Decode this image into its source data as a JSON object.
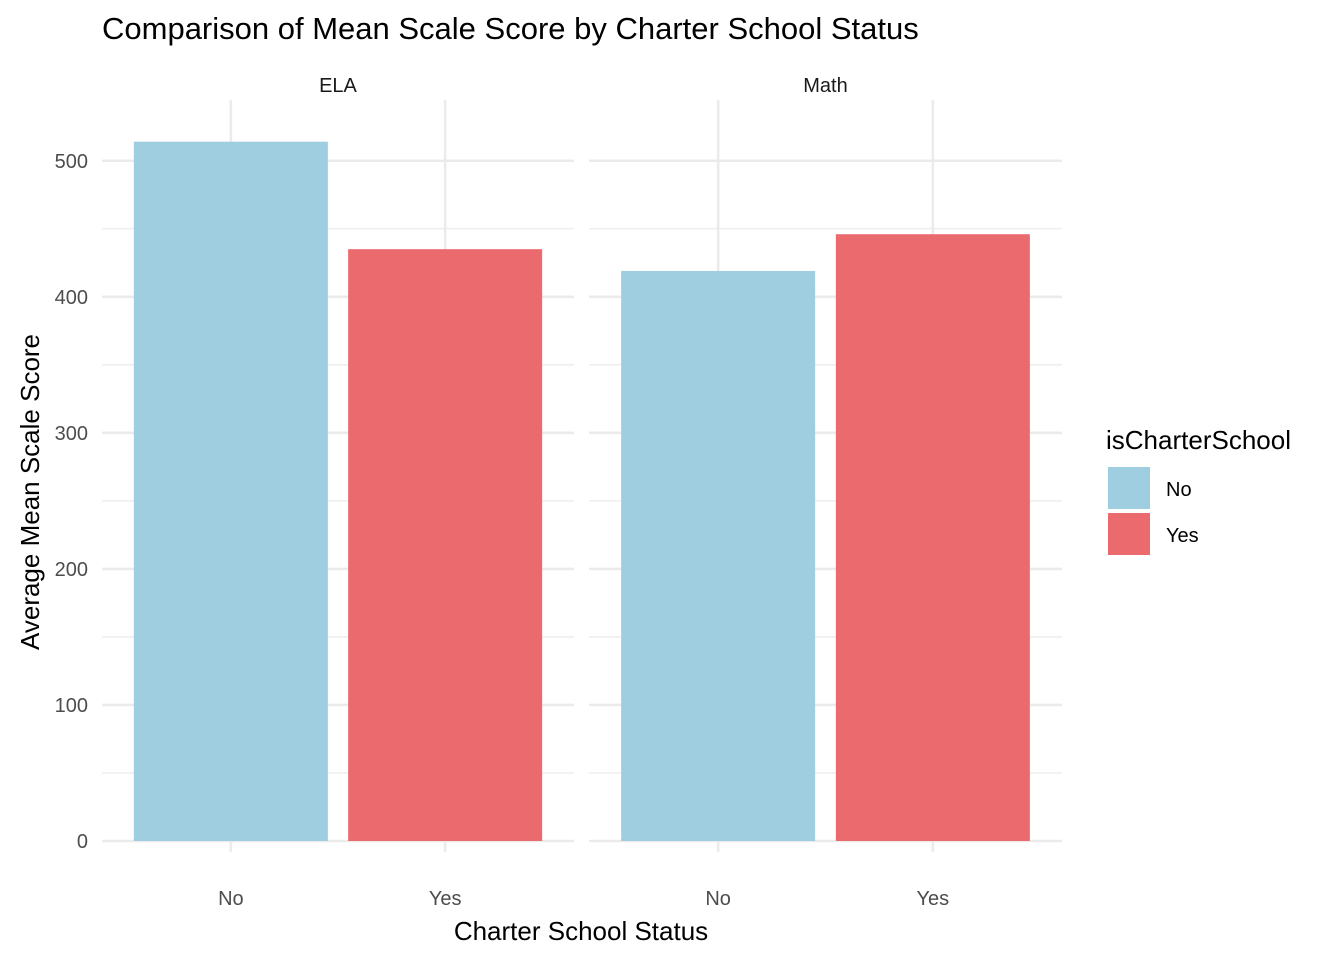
{
  "chart_data": {
    "type": "bar",
    "title": "Comparison of Mean Scale Score by Charter School Status",
    "xlabel": "Charter School Status",
    "ylabel": "Average Mean Scale Score",
    "ylim": [
      0,
      530
    ],
    "yticks": [
      0,
      100,
      200,
      300,
      400,
      500
    ],
    "grid": true,
    "categories": [
      "No",
      "Yes"
    ],
    "facets": [
      {
        "name": "ELA",
        "values": [
          514,
          435
        ]
      },
      {
        "name": "Math",
        "values": [
          419,
          446
        ]
      }
    ],
    "legend": {
      "title": "isCharterSchool",
      "placement": "right",
      "entries": [
        {
          "label": "No",
          "color": "#9ECEE0"
        },
        {
          "label": "Yes",
          "color": "#EA6A6E"
        }
      ]
    }
  }
}
